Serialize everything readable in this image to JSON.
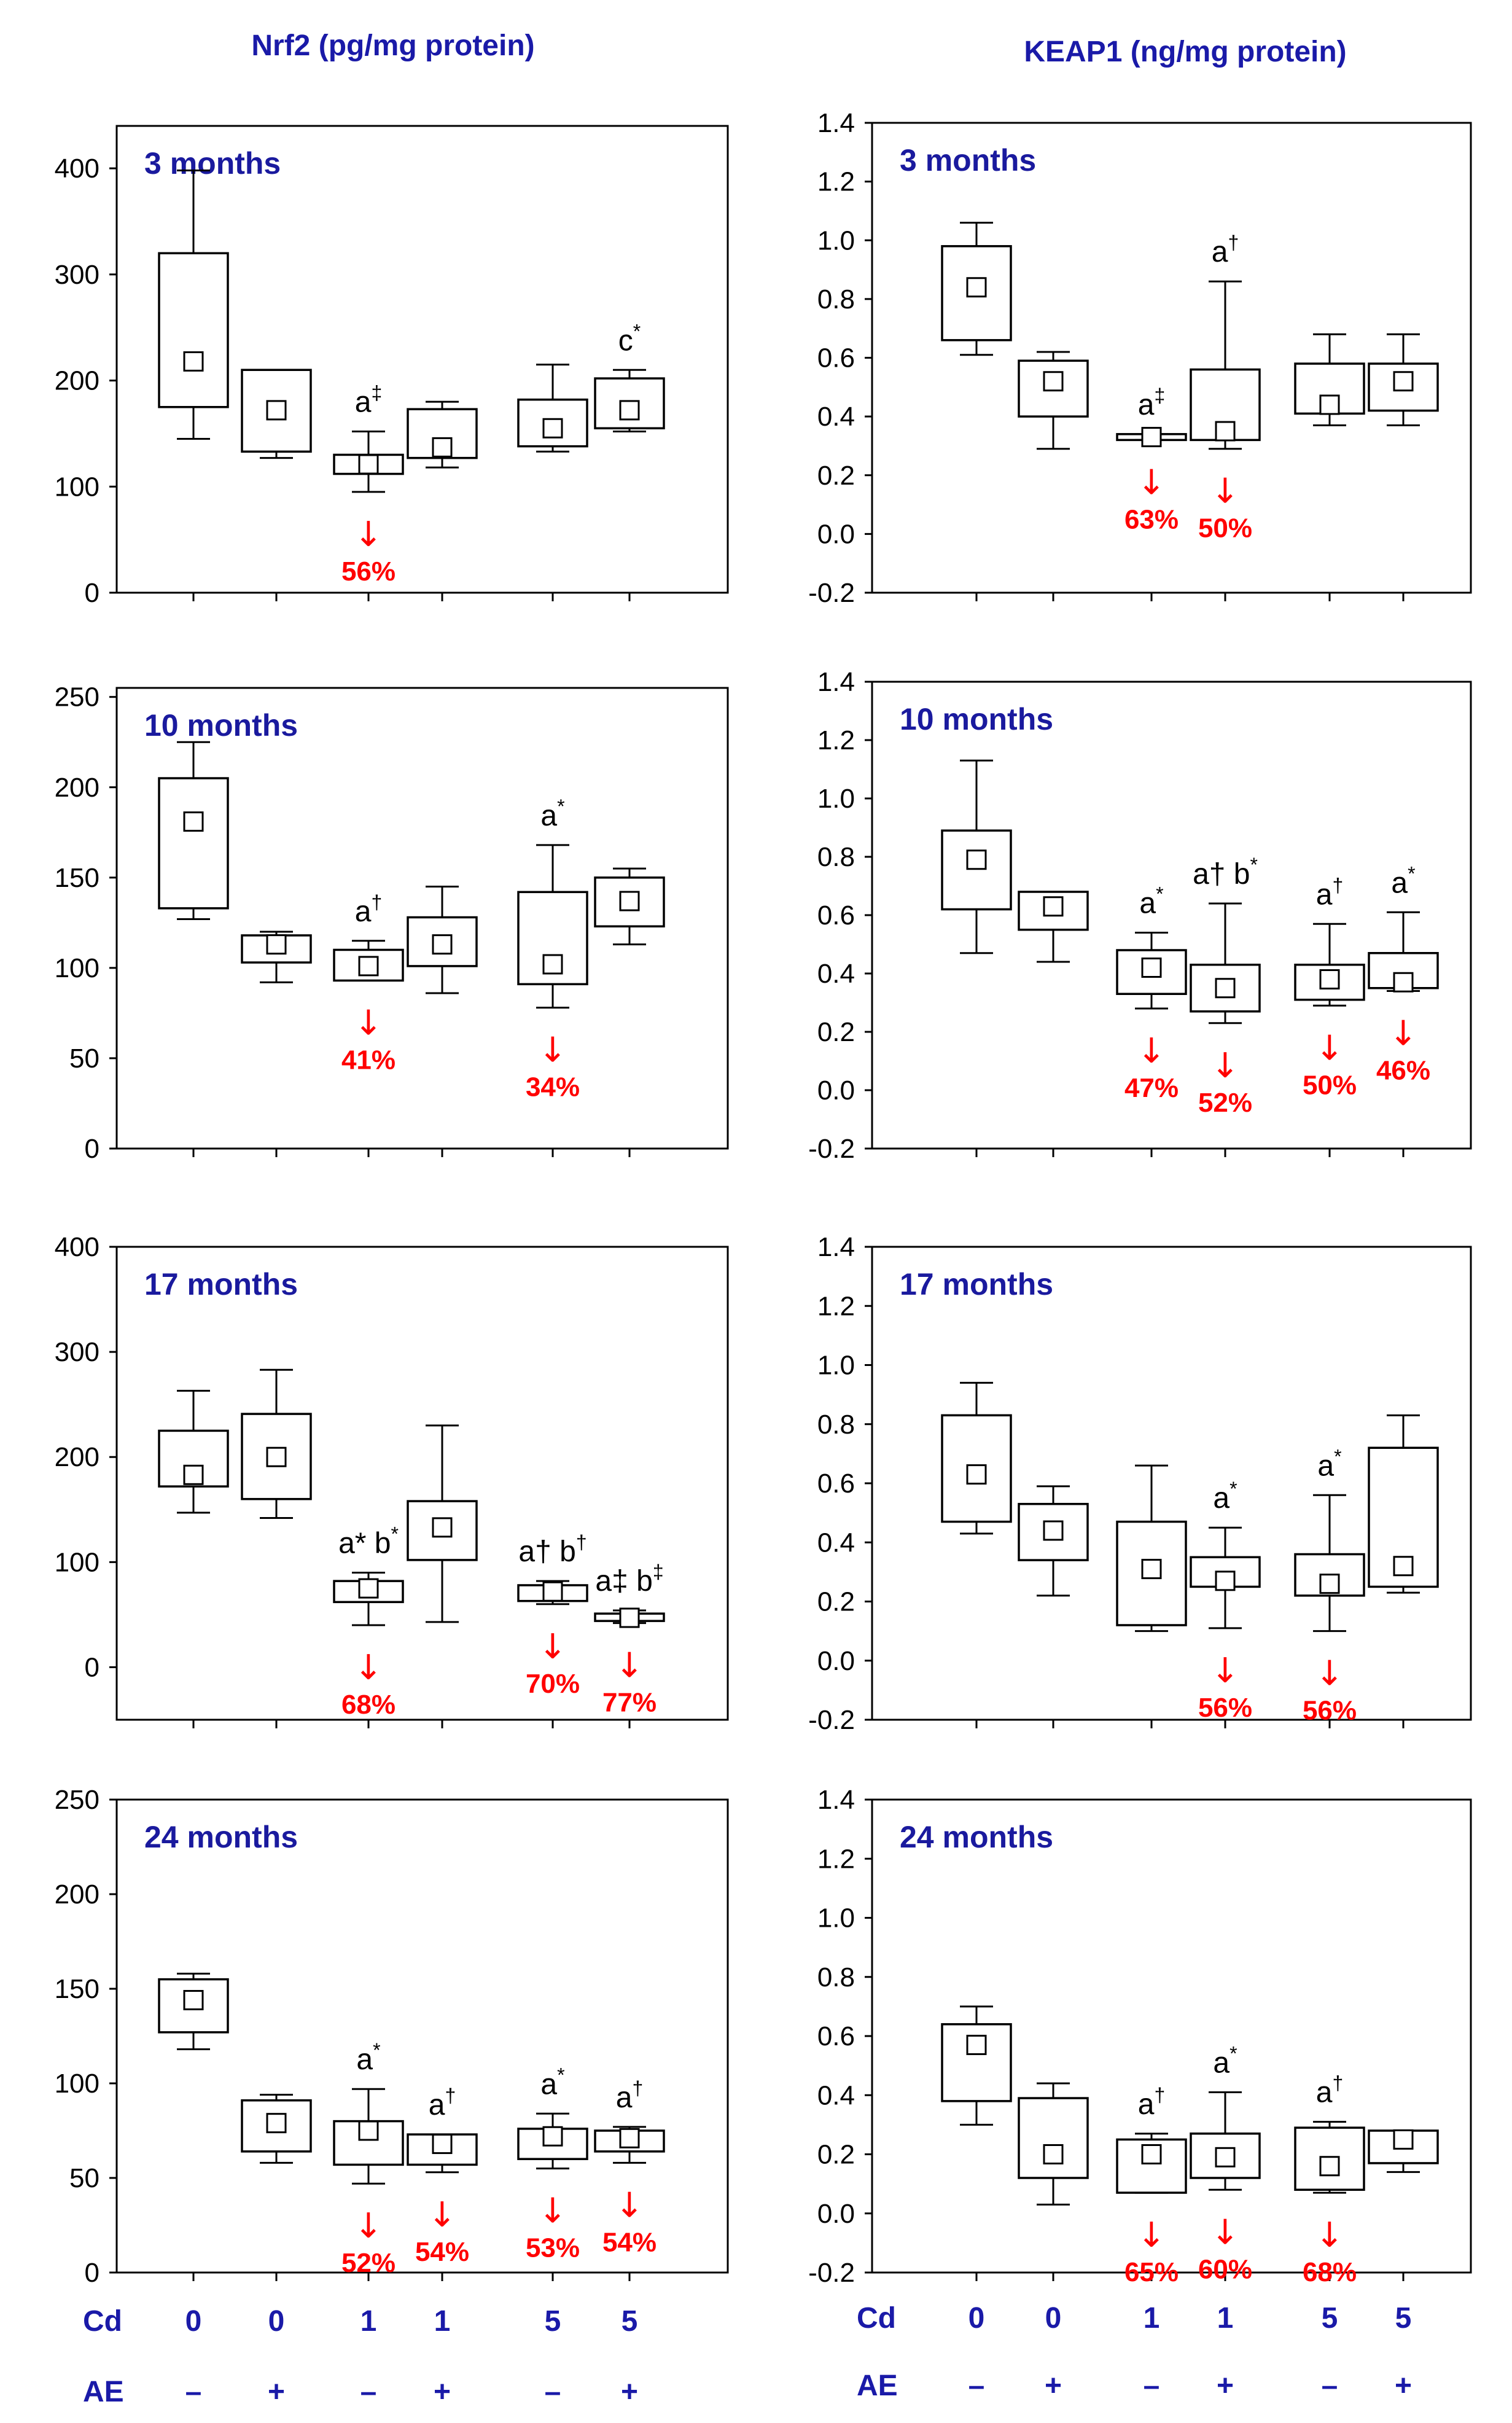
{
  "columns": [
    {
      "title": "Nrf2 (pg/mg protein)"
    },
    {
      "title": "KEAP1 (ng/mg protein)"
    }
  ],
  "x_rows": {
    "cd_label": "Cd",
    "cd_values": [
      "0",
      "0",
      "1",
      "1",
      "5",
      "5"
    ],
    "ae_label": "AE",
    "ae_values": [
      "–",
      "+",
      "–",
      "+",
      "–",
      "+"
    ]
  },
  "chart_data": [
    {
      "type": "box",
      "title": "Nrf2 (pg/mg protein)",
      "period": "3 months",
      "ylim": [
        0,
        440
      ],
      "yticks": [
        0,
        100,
        200,
        300,
        400
      ],
      "yticklabels": [
        "0",
        "100",
        "200",
        "300",
        "400"
      ],
      "boxes": [
        {
          "low": 145,
          "q1": 175,
          "q3": 320,
          "high": 398,
          "mean": 218
        },
        {
          "low": 127,
          "q1": 133,
          "q3": 210,
          "high": 210,
          "mean": 172
        },
        {
          "low": 95,
          "q1": 112,
          "q3": 130,
          "high": 152,
          "mean": 121,
          "ann": "a",
          "sup": "‡",
          "pct": "56%"
        },
        {
          "low": 118,
          "q1": 127,
          "q3": 173,
          "high": 180,
          "mean": 137
        },
        {
          "low": 133,
          "q1": 138,
          "q3": 182,
          "high": 215,
          "mean": 155
        },
        {
          "low": 152,
          "q1": 155,
          "q3": 202,
          "high": 210,
          "mean": 172,
          "ann": "c",
          "sup": "*"
        }
      ]
    },
    {
      "type": "box",
      "title": "KEAP1 (ng/mg protein)",
      "period": "3 months",
      "ylim": [
        -0.2,
        1.4
      ],
      "yticks": [
        -0.2,
        0,
        0.2,
        0.4,
        0.6,
        0.8,
        1,
        1.2,
        1.4
      ],
      "yticklabels": [
        "-0.2",
        "0.0",
        "0.2",
        "0.4",
        "0.6",
        "0.8",
        "1.0",
        "1.2",
        "1.4"
      ],
      "boxes": [
        {
          "low": 0.61,
          "q1": 0.66,
          "q3": 0.98,
          "high": 1.06,
          "mean": 0.84
        },
        {
          "low": 0.29,
          "q1": 0.4,
          "q3": 0.59,
          "high": 0.62,
          "mean": 0.52
        },
        {
          "low": 0.32,
          "q1": 0.32,
          "q3": 0.34,
          "high": 0.34,
          "mean": 0.33,
          "ann": "a",
          "sup": "‡",
          "pct": "63%"
        },
        {
          "low": 0.29,
          "q1": 0.32,
          "q3": 0.56,
          "high": 0.86,
          "mean": 0.35,
          "ann": "a",
          "sup": "†",
          "pct": "50%"
        },
        {
          "low": 0.37,
          "q1": 0.41,
          "q3": 0.58,
          "high": 0.68,
          "mean": 0.44
        },
        {
          "low": 0.37,
          "q1": 0.42,
          "q3": 0.58,
          "high": 0.68,
          "mean": 0.52
        }
      ]
    },
    {
      "type": "box",
      "title": "Nrf2 (pg/mg protein)",
      "period": "10 months",
      "ylim": [
        0,
        255
      ],
      "yticks": [
        0,
        50,
        100,
        150,
        200,
        250
      ],
      "yticklabels": [
        "0",
        "50",
        "100",
        "150",
        "200",
        "250"
      ],
      "boxes": [
        {
          "low": 127,
          "q1": 133,
          "q3": 205,
          "high": 225,
          "mean": 181
        },
        {
          "low": 92,
          "q1": 103,
          "q3": 118,
          "high": 120,
          "mean": 113
        },
        {
          "low": 93,
          "q1": 93,
          "q3": 110,
          "high": 115,
          "mean": 101,
          "ann": "a",
          "sup": "†",
          "pct": "41%"
        },
        {
          "low": 86,
          "q1": 101,
          "q3": 128,
          "high": 145,
          "mean": 113
        },
        {
          "low": 78,
          "q1": 91,
          "q3": 142,
          "high": 168,
          "mean": 102,
          "ann": "a",
          "sup": "*",
          "pct": "34%"
        },
        {
          "low": 113,
          "q1": 123,
          "q3": 150,
          "high": 155,
          "mean": 137
        }
      ]
    },
    {
      "type": "box",
      "title": "KEAP1 (ng/mg protein)",
      "period": "10 months",
      "ylim": [
        -0.2,
        1.4
      ],
      "yticks": [
        -0.2,
        0,
        0.2,
        0.4,
        0.6,
        0.8,
        1,
        1.2,
        1.4
      ],
      "yticklabels": [
        "-0.2",
        "0.0",
        "0.2",
        "0.4",
        "0.6",
        "0.8",
        "1.0",
        "1.2",
        "1.4"
      ],
      "boxes": [
        {
          "low": 0.47,
          "q1": 0.62,
          "q3": 0.89,
          "high": 1.13,
          "mean": 0.79
        },
        {
          "low": 0.44,
          "q1": 0.55,
          "q3": 0.68,
          "high": 0.68,
          "mean": 0.63
        },
        {
          "low": 0.28,
          "q1": 0.33,
          "q3": 0.48,
          "high": 0.54,
          "mean": 0.42,
          "ann": "a",
          "sup": "*",
          "pct": "47%"
        },
        {
          "low": 0.23,
          "q1": 0.27,
          "q3": 0.43,
          "high": 0.64,
          "mean": 0.35,
          "ann": "a† b",
          "sup": "*",
          "pct": "52%"
        },
        {
          "low": 0.29,
          "q1": 0.31,
          "q3": 0.43,
          "high": 0.57,
          "mean": 0.38,
          "ann": "a",
          "sup": "†",
          "pct": "50%"
        },
        {
          "low": 0.34,
          "q1": 0.35,
          "q3": 0.47,
          "high": 0.61,
          "mean": 0.37,
          "ann": "a",
          "sup": "*",
          "pct": "46%"
        }
      ]
    },
    {
      "type": "box",
      "title": "Nrf2 (pg/mg protein)",
      "period": "17 months",
      "ylim": [
        -50,
        400
      ],
      "yticks": [
        0,
        100,
        200,
        300,
        400
      ],
      "yticklabels": [
        "0",
        "100",
        "200",
        "300",
        "400"
      ],
      "boxes": [
        {
          "low": 147,
          "q1": 172,
          "q3": 225,
          "high": 263,
          "mean": 183
        },
        {
          "low": 142,
          "q1": 160,
          "q3": 241,
          "high": 283,
          "mean": 200
        },
        {
          "low": 40,
          "q1": 62,
          "q3": 82,
          "high": 90,
          "mean": 75,
          "ann": "a* b",
          "sup": "*",
          "pct": "68%"
        },
        {
          "low": 43,
          "q1": 102,
          "q3": 158,
          "high": 230,
          "mean": 133
        },
        {
          "low": 60,
          "q1": 63,
          "q3": 78,
          "high": 82,
          "mean": 72,
          "ann": "a† b",
          "sup": "†",
          "pct": "70%"
        },
        {
          "low": 42,
          "q1": 44,
          "q3": 51,
          "high": 54,
          "mean": 47,
          "ann": "a‡ b",
          "sup": "‡",
          "pct": "77%"
        }
      ]
    },
    {
      "type": "box",
      "title": "KEAP1 (ng/mg protein)",
      "period": "17 months",
      "ylim": [
        -0.2,
        1.4
      ],
      "yticks": [
        -0.2,
        0,
        0.2,
        0.4,
        0.6,
        0.8,
        1,
        1.2,
        1.4
      ],
      "yticklabels": [
        "-0.2",
        "0.0",
        "0.2",
        "0.4",
        "0.6",
        "0.8",
        "1.0",
        "1.2",
        "1.4"
      ],
      "boxes": [
        {
          "low": 0.43,
          "q1": 0.47,
          "q3": 0.83,
          "high": 0.94,
          "mean": 0.63
        },
        {
          "low": 0.22,
          "q1": 0.34,
          "q3": 0.53,
          "high": 0.59,
          "mean": 0.44
        },
        {
          "low": 0.1,
          "q1": 0.12,
          "q3": 0.47,
          "high": 0.66,
          "mean": 0.31
        },
        {
          "low": 0.11,
          "q1": 0.25,
          "q3": 0.35,
          "high": 0.45,
          "mean": 0.27,
          "ann": "a",
          "sup": "*",
          "pct": "56%"
        },
        {
          "low": 0.1,
          "q1": 0.22,
          "q3": 0.36,
          "high": 0.56,
          "mean": 0.26,
          "ann": "a",
          "sup": "*",
          "pct": "56%"
        },
        {
          "low": 0.23,
          "q1": 0.25,
          "q3": 0.72,
          "high": 0.83,
          "mean": 0.32
        }
      ]
    },
    {
      "type": "box",
      "title": "Nrf2 (pg/mg protein)",
      "period": "24 months",
      "ylim": [
        0,
        250
      ],
      "yticks": [
        0,
        50,
        100,
        150,
        200,
        250
      ],
      "yticklabels": [
        "0",
        "50",
        "100",
        "150",
        "200",
        "250"
      ],
      "boxes": [
        {
          "low": 118,
          "q1": 127,
          "q3": 155,
          "high": 158,
          "mean": 144
        },
        {
          "low": 58,
          "q1": 64,
          "q3": 91,
          "high": 94,
          "mean": 79
        },
        {
          "low": 47,
          "q1": 57,
          "q3": 80,
          "high": 97,
          "mean": 75,
          "ann": "a",
          "sup": "*",
          "pct": "52%"
        },
        {
          "low": 53,
          "q1": 57,
          "q3": 73,
          "high": 73,
          "mean": 68,
          "ann": "a",
          "sup": "†",
          "pct": "54%"
        },
        {
          "low": 55,
          "q1": 60,
          "q3": 76,
          "high": 84,
          "mean": 72,
          "ann": "a",
          "sup": "*",
          "pct": "53%"
        },
        {
          "low": 58,
          "q1": 64,
          "q3": 75,
          "high": 77,
          "mean": 71,
          "ann": "a",
          "sup": "†",
          "pct": "54%"
        }
      ]
    },
    {
      "type": "box",
      "title": "KEAP1 (ng/mg protein)",
      "period": "24 months",
      "ylim": [
        -0.2,
        1.4
      ],
      "yticks": [
        -0.2,
        0,
        0.2,
        0.4,
        0.6,
        0.8,
        1,
        1.2,
        1.4
      ],
      "yticklabels": [
        "-0.2",
        "0.0",
        "0.2",
        "0.4",
        "0.6",
        "0.8",
        "1.0",
        "1.2",
        "1.4"
      ],
      "boxes": [
        {
          "low": 0.3,
          "q1": 0.38,
          "q3": 0.64,
          "high": 0.7,
          "mean": 0.57
        },
        {
          "low": 0.03,
          "q1": 0.12,
          "q3": 0.39,
          "high": 0.44,
          "mean": 0.2
        },
        {
          "low": 0.07,
          "q1": 0.07,
          "q3": 0.25,
          "high": 0.27,
          "mean": 0.2,
          "ann": "a",
          "sup": "†",
          "pct": "65%"
        },
        {
          "low": 0.08,
          "q1": 0.12,
          "q3": 0.27,
          "high": 0.41,
          "mean": 0.19,
          "ann": "a",
          "sup": "*",
          "pct": "60%"
        },
        {
          "low": 0.07,
          "q1": 0.08,
          "q3": 0.29,
          "high": 0.31,
          "mean": 0.16,
          "ann": "a",
          "sup": "†",
          "pct": "68%"
        },
        {
          "low": 0.14,
          "q1": 0.17,
          "q3": 0.28,
          "high": 0.28,
          "mean": 0.25
        }
      ]
    }
  ]
}
